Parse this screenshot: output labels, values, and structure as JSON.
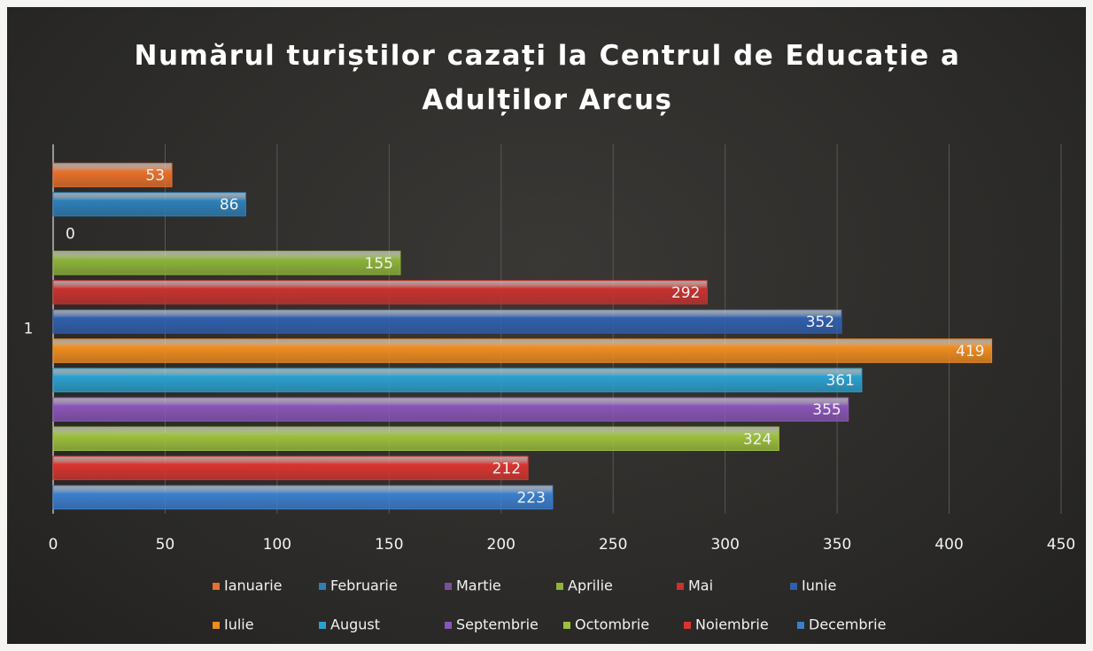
{
  "chart_data": {
    "type": "bar",
    "orientation": "horizontal",
    "title": "Numărul turiștilor cazați la Centrul de Educație a Adulților Arcuș",
    "categories": [
      "1"
    ],
    "series": [
      {
        "name": "Ianuarie",
        "color": "#e8702a",
        "values": [
          53
        ]
      },
      {
        "name": "Februarie",
        "color": "#2c7fb8",
        "values": [
          86
        ]
      },
      {
        "name": "Martie",
        "color": "#7b4fa0",
        "values": [
          0
        ]
      },
      {
        "name": "Aprilie",
        "color": "#8db33a",
        "values": [
          155
        ]
      },
      {
        "name": "Mai",
        "color": "#c8322f",
        "values": [
          292
        ]
      },
      {
        "name": "Iunie",
        "color": "#2f5fae",
        "values": [
          352
        ]
      },
      {
        "name": "Iulie",
        "color": "#f08c1e",
        "values": [
          419
        ]
      },
      {
        "name": "August",
        "color": "#2aa0cf",
        "values": [
          361
        ]
      },
      {
        "name": "Septembrie",
        "color": "#8a55b8",
        "values": [
          355
        ]
      },
      {
        "name": "Octombrie",
        "color": "#9ec13d",
        "values": [
          324
        ]
      },
      {
        "name": "Noiembrie",
        "color": "#d9342f",
        "values": [
          212
        ]
      },
      {
        "name": "Decembrie",
        "color": "#3a7fcf",
        "values": [
          223
        ]
      }
    ],
    "xlim": [
      0,
      450
    ],
    "xticks": [
      0,
      50,
      100,
      150,
      200,
      250,
      300,
      350,
      400,
      450
    ],
    "grid": true,
    "legend": "bottom"
  }
}
